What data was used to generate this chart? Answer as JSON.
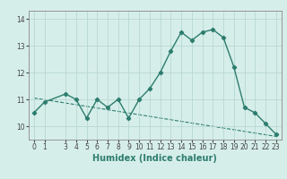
{
  "x": [
    0,
    1,
    3,
    4,
    5,
    6,
    7,
    8,
    9,
    10,
    11,
    12,
    13,
    14,
    15,
    16,
    17,
    18,
    19,
    20,
    21,
    22,
    23
  ],
  "y": [
    10.5,
    10.9,
    11.2,
    11.0,
    10.3,
    11.0,
    10.7,
    11.0,
    10.3,
    11.0,
    11.4,
    12.0,
    12.8,
    13.5,
    13.2,
    13.5,
    13.6,
    13.3,
    12.2,
    10.7,
    10.5,
    10.1,
    9.7
  ],
  "trend_x": [
    0,
    23
  ],
  "trend_y": [
    11.05,
    9.62
  ],
  "color": "#2d7d6e",
  "bg_color": "#d6eeea",
  "grid_color": "#b8d8d2",
  "xlabel": "Humidex (Indice chaleur)",
  "xlim": [
    -0.5,
    23.5
  ],
  "ylim": [
    9.5,
    14.3
  ],
  "yticks": [
    10,
    11,
    12,
    13,
    14
  ],
  "xticks": [
    0,
    1,
    3,
    4,
    5,
    6,
    7,
    8,
    9,
    10,
    11,
    12,
    13,
    14,
    15,
    16,
    17,
    18,
    19,
    20,
    21,
    22,
    23
  ],
  "tick_fontsize": 5.5,
  "label_fontsize": 7.0
}
